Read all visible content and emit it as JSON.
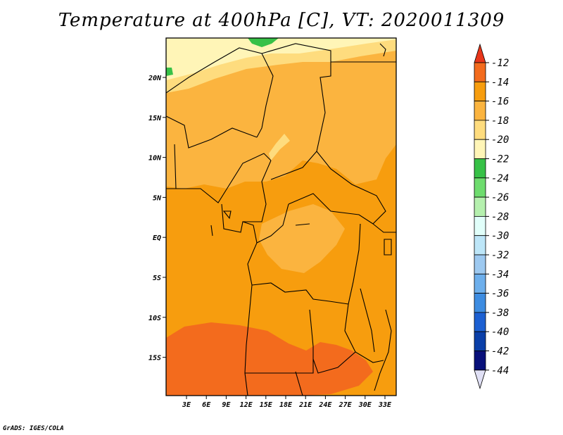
{
  "title": "Temperature at 400hPa [C], VT: 2020011309",
  "credit": "GrADS: IGES/COLA",
  "map": {
    "lat_ticks": [
      "20N",
      "15N",
      "10N",
      "5N",
      "EQ",
      "5S",
      "10S",
      "15S"
    ],
    "lon_ticks": [
      "3E",
      "6E",
      "9E",
      "12E",
      "15E",
      "18E",
      "21E",
      "24E",
      "27E",
      "30E",
      "33E"
    ],
    "field_colors": {
      "-12_-14": "#F36B1D",
      "-14_-16": "#F79D0E",
      "-16_-18": "#FBB43F",
      "-18_-20": "#FEDC7E",
      "-20_-22": "#FFF5B7",
      "-22_-24": "#37C147"
    }
  },
  "colorbar": {
    "labels": [
      "-12",
      "-14",
      "-16",
      "-18",
      "-20",
      "-22",
      "-24",
      "-26",
      "-28",
      "-30",
      "-32",
      "-34",
      "-36",
      "-38",
      "-40",
      "-42",
      "-44"
    ],
    "colors": [
      "#E8361A",
      "#F36B1D",
      "#F79D0E",
      "#FBB43F",
      "#FEDC7E",
      "#FFF5B7",
      "#37C147",
      "#6EDC6E",
      "#B5F0AE",
      "#E1FFFA",
      "#BDE6F8",
      "#9DC9F0",
      "#6DAFEC",
      "#3D8CE1",
      "#1C60D2",
      "#0A3FA8",
      "#08107A",
      "#E0E0F5"
    ]
  }
}
